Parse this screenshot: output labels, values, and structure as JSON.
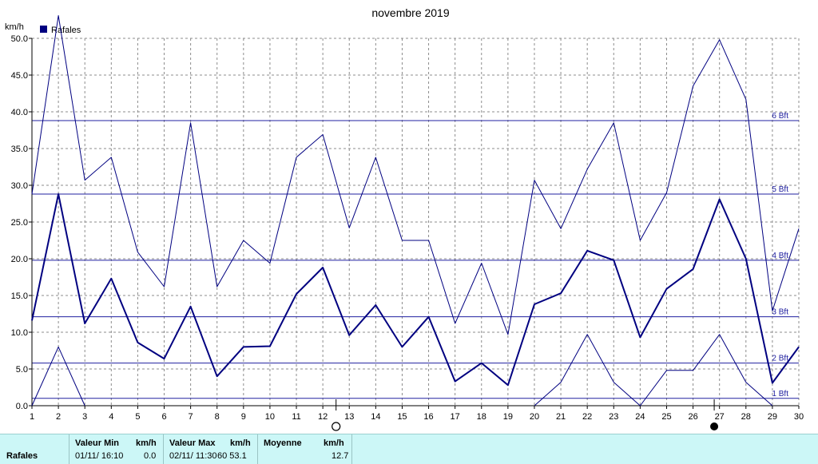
{
  "chart_data": {
    "type": "line",
    "title": "novembre 2019",
    "ylabel": "km/h",
    "legend": [
      "Rafales"
    ],
    "legend_position": "top-left",
    "x": [
      1,
      2,
      3,
      4,
      5,
      6,
      7,
      8,
      9,
      10,
      11,
      12,
      13,
      14,
      15,
      16,
      17,
      18,
      19,
      20,
      21,
      22,
      23,
      24,
      25,
      26,
      27,
      28,
      29,
      30
    ],
    "ylim": [
      0,
      50
    ],
    "yticks": [
      "0.0",
      "5.0",
      "10.0",
      "15.0",
      "20.0",
      "25.0",
      "30.0",
      "35.0",
      "40.0",
      "45.0",
      "50.0"
    ],
    "grid": true,
    "series": [
      {
        "name": "Rafales",
        "role": "mean",
        "color": "#000080",
        "values": [
          11.6,
          28.8,
          11.2,
          17.3,
          8.6,
          6.4,
          13.5,
          4.0,
          8.0,
          8.1,
          15.2,
          18.8,
          9.6,
          13.7,
          8.0,
          12.1,
          3.3,
          5.8,
          2.8,
          13.8,
          15.3,
          21.1,
          19.8,
          9.3,
          15.9,
          18.6,
          28.1,
          20.0,
          3.1,
          8.0
        ]
      },
      {
        "role": "max",
        "color": "#000080",
        "values": [
          28.8,
          53.1,
          30.7,
          33.8,
          20.9,
          16.2,
          38.5,
          16.2,
          22.5,
          19.4,
          33.8,
          36.9,
          24.2,
          33.8,
          22.5,
          22.5,
          11.2,
          19.4,
          9.7,
          30.7,
          24.1,
          32.2,
          38.5,
          22.5,
          29.0,
          43.5,
          49.8,
          41.7,
          12.9,
          24.1
        ]
      },
      {
        "role": "min",
        "color": "#000080",
        "values": [
          0.0,
          8.0,
          0.0,
          null,
          null,
          null,
          null,
          null,
          null,
          null,
          null,
          null,
          null,
          null,
          null,
          null,
          null,
          null,
          null,
          0.0,
          3.2,
          9.7,
          3.2,
          0.0,
          4.8,
          4.8,
          9.7,
          3.2,
          0.0,
          null
        ]
      }
    ],
    "beaufort_lines": [
      {
        "label": "1 Bft",
        "value": 1
      },
      {
        "label": "2 Bft",
        "value": 5.8
      },
      {
        "label": "3 Bft",
        "value": 12.1
      },
      {
        "label": "4 Bft",
        "value": 19.8
      },
      {
        "label": "5 Bft",
        "value": 28.8
      },
      {
        "label": "6 Bft",
        "value": 38.8
      }
    ],
    "moon_phases": [
      {
        "day": 12.5,
        "phase": "full"
      },
      {
        "day": 26.8,
        "phase": "new"
      }
    ]
  },
  "summary": {
    "row_label": "Rafales",
    "min_header": "Valeur Min",
    "min_unit_header": "km/h",
    "min_date": "01/11/ 16:10",
    "min_value": "0.0",
    "max_header": "Valeur Max",
    "max_unit_header": "km/h",
    "max_date": "02/11/ 11:30",
    "max_value": "60 53.1",
    "avg_header": "Moyenne",
    "avg_unit_header": "km/h",
    "avg_value": "12.7"
  }
}
